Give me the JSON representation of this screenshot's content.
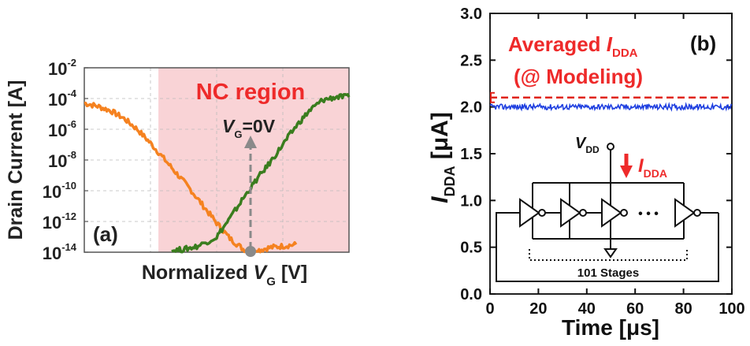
{
  "chart_data": [
    {
      "panel": "(a)",
      "type": "line",
      "xlabel_main": "Normalized ",
      "xlabel_var": "V",
      "xlabel_sub": "G",
      "xlabel_unit": " [V]",
      "ylabel": "Drain Current [A]",
      "yscale": "log",
      "ylim_exp": [
        -14,
        -2
      ],
      "yticks": [
        {
          "exp": -14,
          "base": "10",
          "sup": "-14"
        },
        {
          "exp": -12,
          "base": "10",
          "sup": "-12"
        },
        {
          "exp": -10,
          "base": "10",
          "sup": "-10"
        },
        {
          "exp": -8,
          "base": "10",
          "sup": "-8"
        },
        {
          "exp": -6,
          "base": "10",
          "sup": "-6"
        },
        {
          "exp": -4,
          "base": "10",
          "sup": "-4"
        },
        {
          "exp": -2,
          "base": "10",
          "sup": "-2"
        }
      ],
      "xlim": [
        0,
        1
      ],
      "region": {
        "label": "NC region",
        "x_start": 0.28,
        "x_end": 1.0,
        "color": "#f9d3d6"
      },
      "annotation": {
        "var": "V",
        "sub": "G",
        "text": "=0V",
        "x": 0.65
      },
      "series": [
        {
          "color": "#f58220",
          "x": [
            0.0,
            0.05,
            0.1,
            0.15,
            0.2,
            0.25,
            0.3,
            0.35,
            0.4,
            0.45,
            0.5,
            0.55,
            0.6,
            0.65,
            0.7,
            0.75,
            0.8
          ],
          "log_y": [
            -4.3,
            -4.5,
            -4.8,
            -5.3,
            -6.0,
            -6.9,
            -7.9,
            -8.9,
            -9.9,
            -11.0,
            -12.1,
            -13.1,
            -13.8,
            -13.9,
            -13.7,
            -13.6,
            -13.5
          ]
        },
        {
          "color": "#3a7d1e",
          "x": [
            0.33,
            0.38,
            0.43,
            0.5,
            0.55,
            0.6,
            0.65,
            0.7,
            0.75,
            0.8,
            0.85,
            0.9,
            0.95,
            1.0
          ],
          "log_y": [
            -13.9,
            -13.8,
            -13.6,
            -13.0,
            -11.8,
            -10.5,
            -9.3,
            -8.2,
            -7.0,
            -5.8,
            -4.8,
            -4.1,
            -3.9,
            -3.9
          ]
        }
      ]
    },
    {
      "panel": "(b)",
      "type": "line",
      "xlabel": "Time [μs]",
      "ylabel_var": "I",
      "ylabel_sub": "DDA",
      "ylabel_unit": " [μA]",
      "xlim": [
        0,
        100
      ],
      "ylim": [
        0.0,
        3.0
      ],
      "xticks": [
        "0",
        "20",
        "40",
        "60",
        "80",
        "100"
      ],
      "yticks": [
        "0.0",
        "0.5",
        "1.0",
        "1.5",
        "2.0",
        "2.5",
        "3.0"
      ],
      "series": [
        {
          "color": "#1f3fe0",
          "style": "noisy",
          "mean": 2.0,
          "noise": 0.03
        },
        {
          "color": "#e0241b",
          "style": "dashed",
          "value": 2.1
        }
      ],
      "legend_text_1": "Averaged ",
      "legend_var": "I",
      "legend_sub": "DDA",
      "legend_text_2": "(@ Modeling)",
      "circuit": {
        "vdd_var": "V",
        "vdd_sub": "DD",
        "current_var": "I",
        "current_sub": "DDA",
        "dots": "• • •",
        "stages": "101 Stages"
      }
    }
  ]
}
